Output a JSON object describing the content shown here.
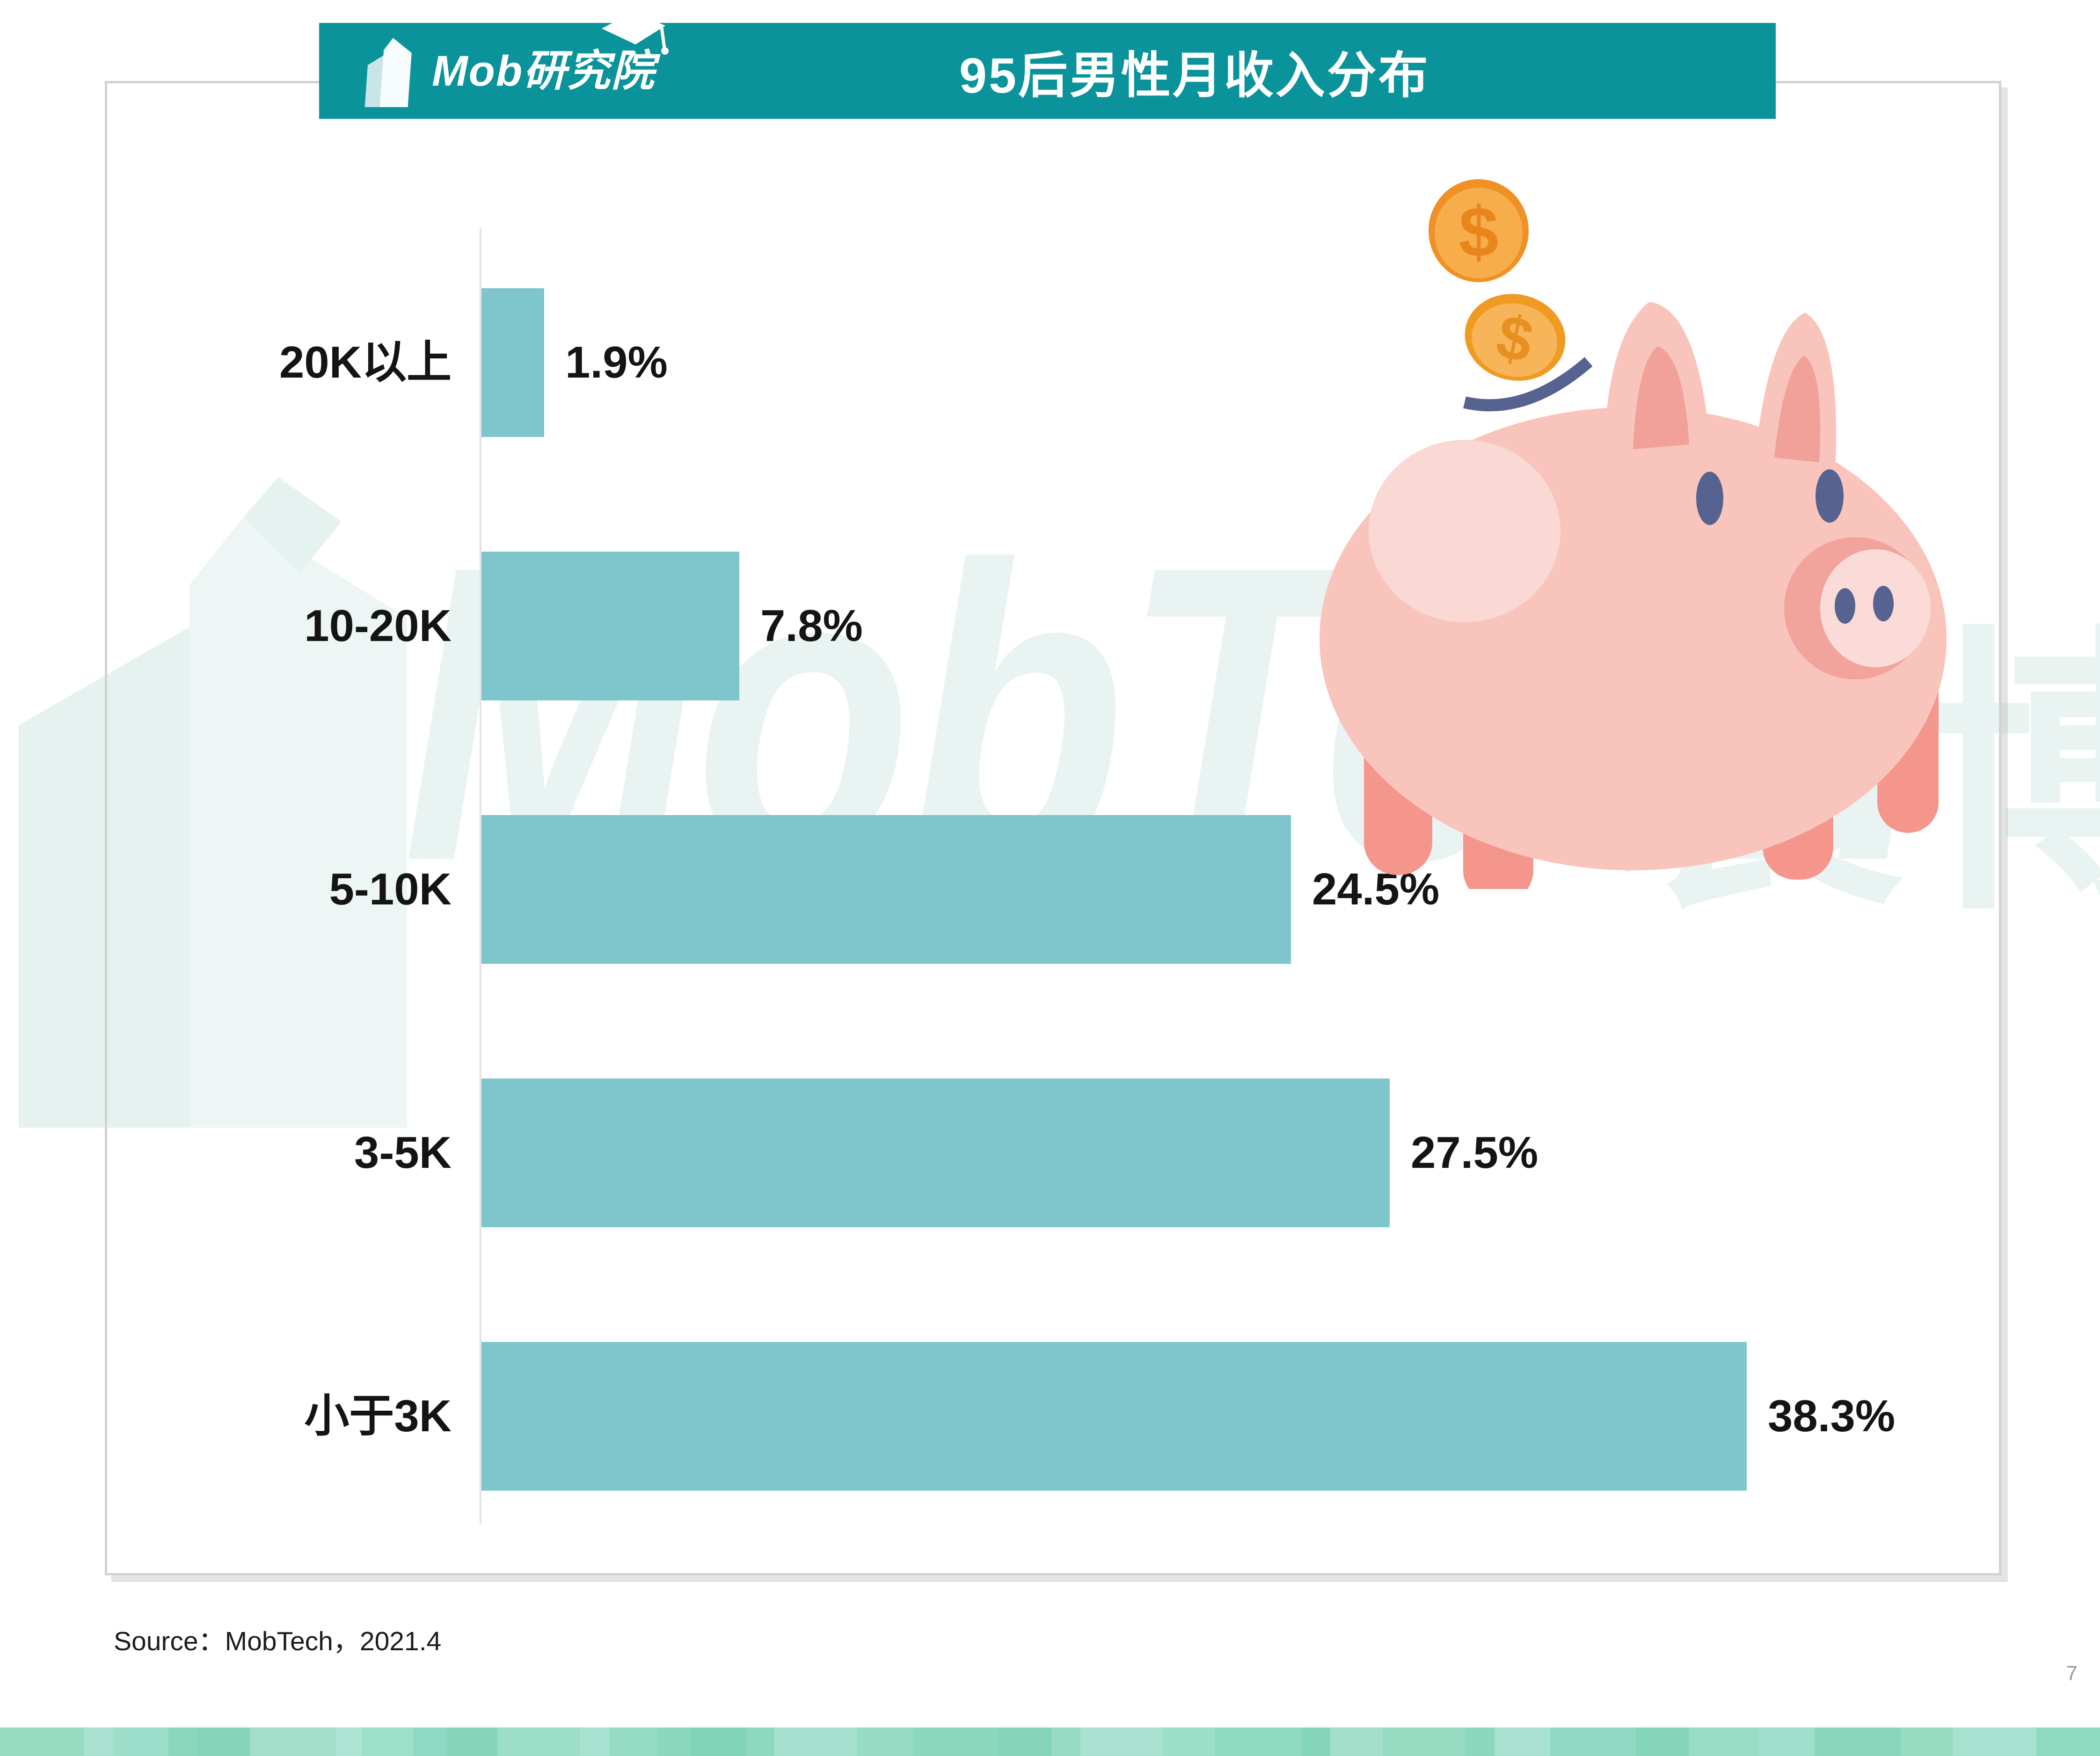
{
  "page": {
    "number": "7"
  },
  "header": {
    "title": "95后男性月收入分布",
    "bar_color": "#0A939A",
    "logo": {
      "text": "Mob研究院",
      "icon": "building-icon",
      "cap_icon": "graduation-cap-icon"
    }
  },
  "watermark": {
    "latin": "MobTech",
    "cjk": "袤博",
    "color": "#E9F3F1"
  },
  "chart_data": {
    "type": "bar",
    "orientation": "horizontal",
    "title": "95后男性月收入分布",
    "categories": [
      "20K以上",
      "10-20K",
      "5-10K",
      "3-5K",
      "小于3K"
    ],
    "values": [
      1.9,
      7.8,
      24.5,
      27.5,
      38.3
    ],
    "value_labels": [
      "1.9%",
      "7.8%",
      "24.5%",
      "27.5%",
      "38.3%"
    ],
    "unit": "%",
    "xlim": [
      0,
      40
    ],
    "bar_color": "#7EC6CB",
    "grid": false,
    "legend": false,
    "value_label_position": "right-of-bar"
  },
  "illustration": {
    "name": "piggy-bank-with-coins",
    "body_color": "#F8C4BC",
    "highlight_color": "#FAD8D3",
    "inner_ear_color": "#F2A09A",
    "snout_color": "#F2A39B",
    "leg_color": "#F5968C",
    "eye_color": "#56628F",
    "coin_rim_color": "#EF9125",
    "coin_body_color": "#F7AD4B",
    "coin_symbol": "$"
  },
  "source": {
    "text": "Source：MobTech，2021.4"
  },
  "footer_strip": {
    "segments": [
      {
        "w": 180,
        "c": "#97DBC3"
      },
      {
        "w": 62,
        "c": "#A9E2D0"
      },
      {
        "w": 120,
        "c": "#9CDEC9"
      },
      {
        "w": 62,
        "c": "#8BD7BD"
      },
      {
        "w": 112,
        "c": "#83D4B8"
      },
      {
        "w": 185,
        "c": "#A3E0CC"
      },
      {
        "w": 55,
        "c": "#AEE4D4"
      },
      {
        "w": 112,
        "c": "#9EDFCA"
      },
      {
        "w": 72,
        "c": "#8ED9C1"
      },
      {
        "w": 108,
        "c": "#85D5BA"
      },
      {
        "w": 178,
        "c": "#9CDEC8"
      },
      {
        "w": 62,
        "c": "#A8E2D0"
      },
      {
        "w": 102,
        "c": "#96DBC4"
      },
      {
        "w": 72,
        "c": "#8BD8BF"
      },
      {
        "w": 120,
        "c": "#82D4B8"
      },
      {
        "w": 60,
        "c": "#8FD8C0"
      },
      {
        "w": 178,
        "c": "#A5E1CE"
      },
      {
        "w": 120,
        "c": "#98DCC5"
      },
      {
        "w": 185,
        "c": "#8CD8BF"
      },
      {
        "w": 112,
        "c": "#84D4B9"
      },
      {
        "w": 62,
        "c": "#97DBC4"
      },
      {
        "w": 178,
        "c": "#A9E2D1"
      },
      {
        "w": 112,
        "c": "#9DDEC9"
      },
      {
        "w": 185,
        "c": "#8FD9C1"
      },
      {
        "w": 62,
        "c": "#85D5BA"
      },
      {
        "w": 112,
        "c": "#A3E0CC"
      },
      {
        "w": 178,
        "c": "#97DBC3"
      },
      {
        "w": 62,
        "c": "#8CD8BE"
      },
      {
        "w": 120,
        "c": "#A9E2D0"
      },
      {
        "w": 185,
        "c": "#91D9C2"
      },
      {
        "w": 112,
        "c": "#85D5BA"
      },
      {
        "w": 150,
        "c": "#9ADDC6"
      },
      {
        "w": 120,
        "c": "#A0DFCB"
      },
      {
        "w": 185,
        "c": "#8AD6BD"
      },
      {
        "w": 112,
        "c": "#97DBC3"
      },
      {
        "w": 180,
        "c": "#A7E1CF"
      },
      {
        "w": 136,
        "c": "#8ED9C0"
      }
    ]
  }
}
